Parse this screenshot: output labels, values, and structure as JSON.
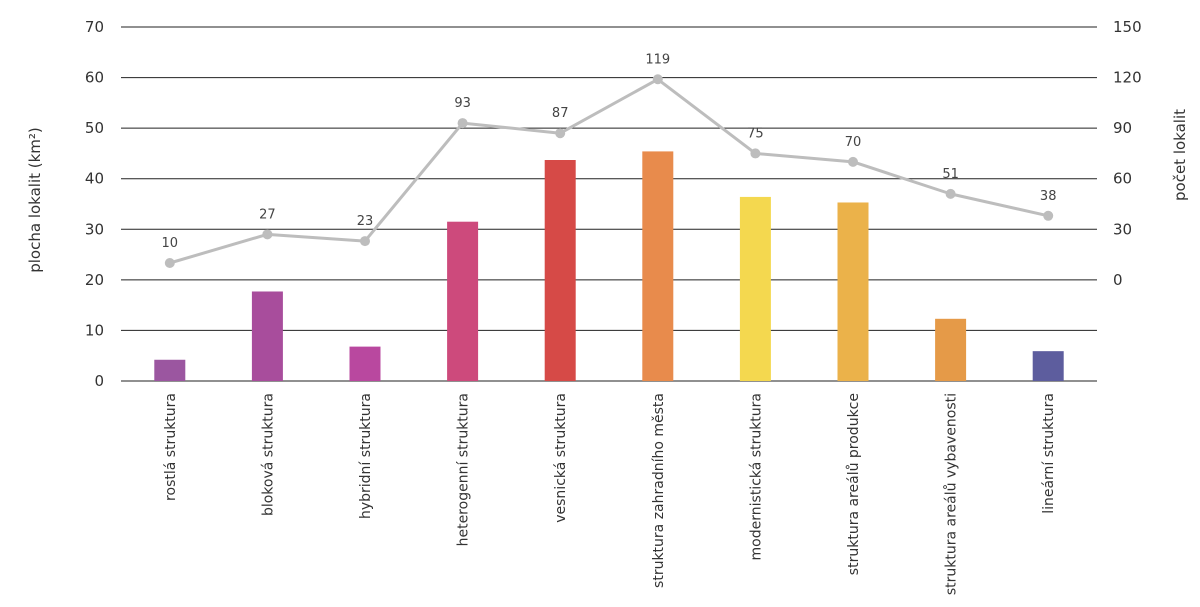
{
  "chart_data": {
    "type": "bar",
    "categories": [
      "rostlá struktura",
      "bloková struktura",
      "hybridní struktura",
      "heterogenní struktura",
      "vesnická struktura",
      "struktura zahradního města",
      "modernistická struktura",
      "struktura areálů produkce",
      "struktura areálů vybavenosti",
      "lineární struktura"
    ],
    "series": [
      {
        "name": "plocha lokalit (km²)",
        "type": "bar",
        "axis": "left",
        "values": [
          4.2,
          17.7,
          6.8,
          31.5,
          43.7,
          45.4,
          36.4,
          35.3,
          12.3,
          5.9
        ],
        "colors": [
          "#9b56a0",
          "#a84d9c",
          "#b9489f",
          "#cd4a7c",
          "#d64a47",
          "#e88b4c",
          "#f4d84f",
          "#ebb24a",
          "#e59a48",
          "#5d5d9e"
        ]
      },
      {
        "name": "počet lokalit",
        "type": "line",
        "axis": "right",
        "values": [
          10,
          27,
          23,
          93,
          87,
          119,
          75,
          70,
          51,
          38
        ],
        "labels": [
          "10",
          "27",
          "23",
          "93",
          "87",
          "119",
          "75",
          "70",
          "51",
          "38"
        ],
        "color": "#bdbdbd"
      }
    ],
    "ylabel": "plocha lokalit (km²)",
    "ylim": [
      0,
      70
    ],
    "yticks": [
      "0",
      "10",
      "20",
      "30",
      "40",
      "50",
      "60",
      "70"
    ],
    "y2label": "počet lokalit",
    "y2lim": [
      -60,
      150
    ],
    "y2ticks": [
      "0",
      "30",
      "60",
      "90",
      "120",
      "150"
    ],
    "grid": true,
    "gridline_color": "#222222"
  }
}
